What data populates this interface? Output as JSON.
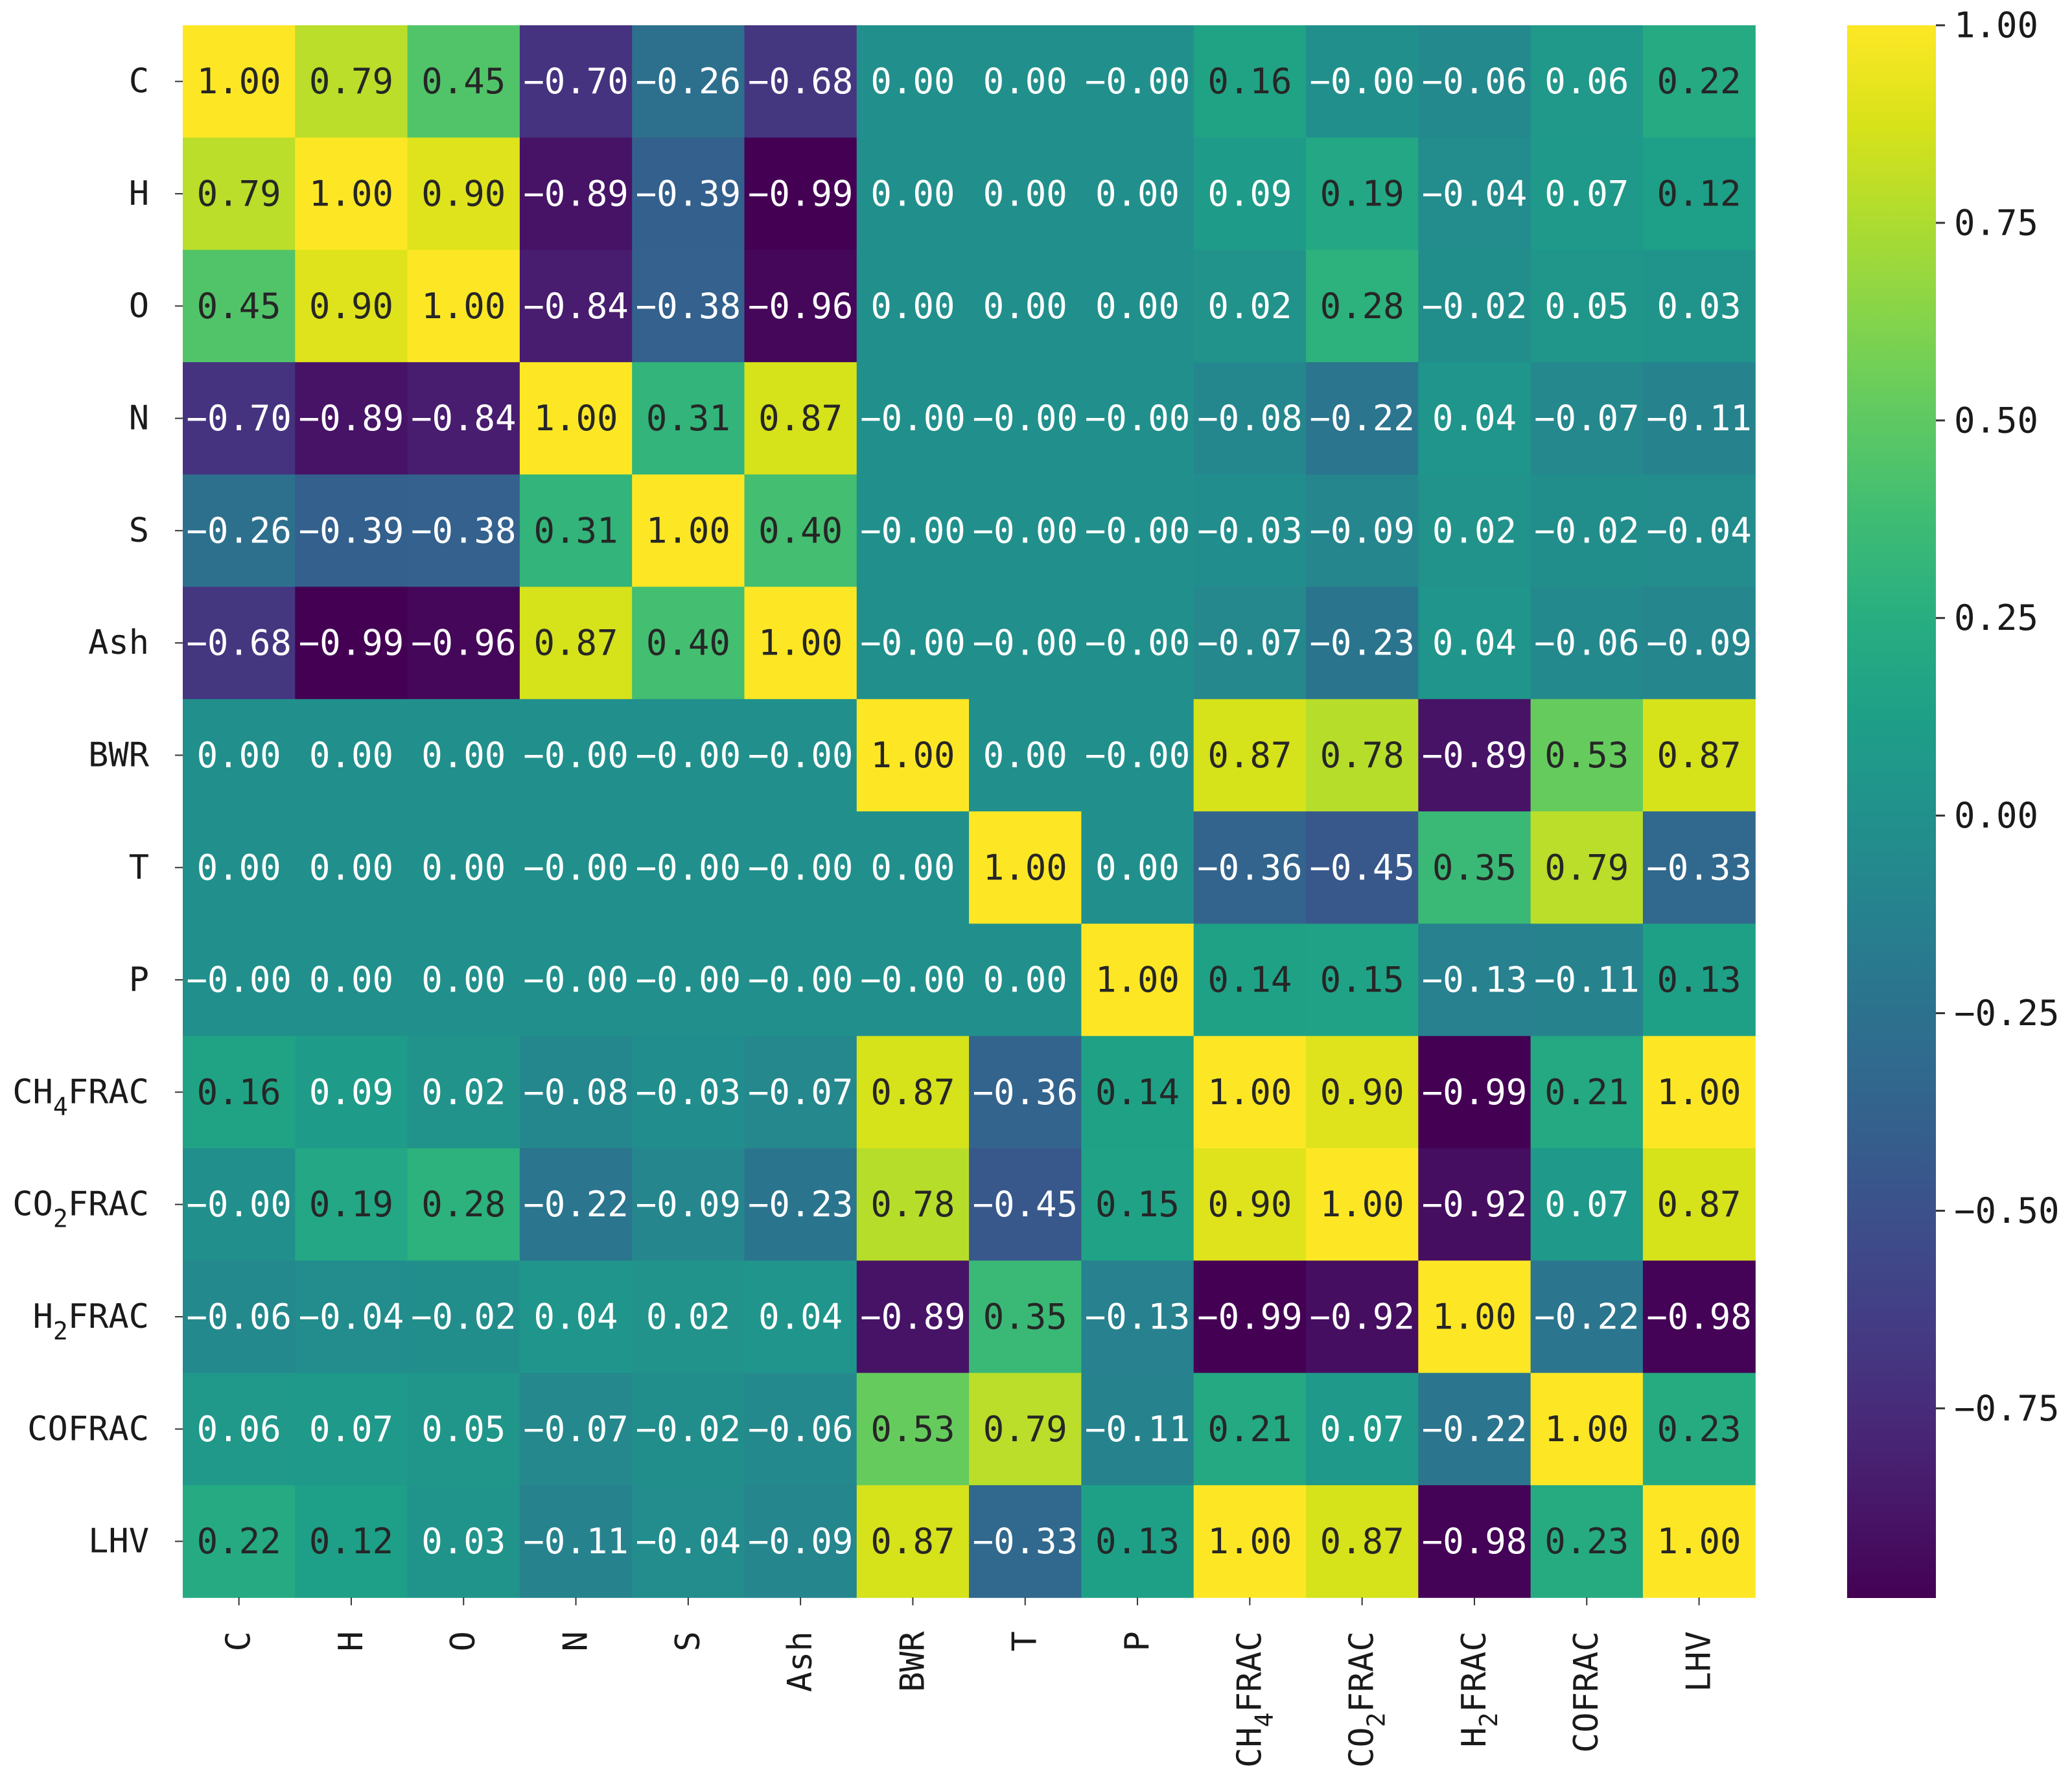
{
  "chart_data": {
    "type": "heatmap",
    "title": "",
    "row_labels": [
      {
        "main": "C",
        "sub": "",
        "suffix": ""
      },
      {
        "main": "H",
        "sub": "",
        "suffix": ""
      },
      {
        "main": "O",
        "sub": "",
        "suffix": ""
      },
      {
        "main": "N",
        "sub": "",
        "suffix": ""
      },
      {
        "main": "S",
        "sub": "",
        "suffix": ""
      },
      {
        "main": "Ash",
        "sub": "",
        "suffix": ""
      },
      {
        "main": "BWR",
        "sub": "",
        "suffix": ""
      },
      {
        "main": "T",
        "sub": "",
        "suffix": ""
      },
      {
        "main": "P",
        "sub": "",
        "suffix": ""
      },
      {
        "main": "CH",
        "sub": "4",
        "suffix": "FRAC"
      },
      {
        "main": "CO",
        "sub": "2",
        "suffix": "FRAC"
      },
      {
        "main": "H",
        "sub": "2",
        "suffix": "FRAC"
      },
      {
        "main": "COFRAC",
        "sub": "",
        "suffix": ""
      },
      {
        "main": "LHV",
        "sub": "",
        "suffix": ""
      }
    ],
    "values": [
      [
        "1.00",
        "0.79",
        "0.45",
        "-0.70",
        "-0.26",
        "-0.68",
        "0.00",
        "0.00",
        "-0.00",
        "0.16",
        "-0.00",
        "-0.06",
        "0.06",
        "0.22"
      ],
      [
        "0.79",
        "1.00",
        "0.90",
        "-0.89",
        "-0.39",
        "-0.99",
        "0.00",
        "0.00",
        "0.00",
        "0.09",
        "0.19",
        "-0.04",
        "0.07",
        "0.12"
      ],
      [
        "0.45",
        "0.90",
        "1.00",
        "-0.84",
        "-0.38",
        "-0.96",
        "0.00",
        "0.00",
        "0.00",
        "0.02",
        "0.28",
        "-0.02",
        "0.05",
        "0.03"
      ],
      [
        "-0.70",
        "-0.89",
        "-0.84",
        "1.00",
        "0.31",
        "0.87",
        "-0.00",
        "-0.00",
        "-0.00",
        "-0.08",
        "-0.22",
        "0.04",
        "-0.07",
        "-0.11"
      ],
      [
        "-0.26",
        "-0.39",
        "-0.38",
        "0.31",
        "1.00",
        "0.40",
        "-0.00",
        "-0.00",
        "-0.00",
        "-0.03",
        "-0.09",
        "0.02",
        "-0.02",
        "-0.04"
      ],
      [
        "-0.68",
        "-0.99",
        "-0.96",
        "0.87",
        "0.40",
        "1.00",
        "-0.00",
        "-0.00",
        "-0.00",
        "-0.07",
        "-0.23",
        "0.04",
        "-0.06",
        "-0.09"
      ],
      [
        "0.00",
        "0.00",
        "0.00",
        "-0.00",
        "-0.00",
        "-0.00",
        "1.00",
        "0.00",
        "-0.00",
        "0.87",
        "0.78",
        "-0.89",
        "0.53",
        "0.87"
      ],
      [
        "0.00",
        "0.00",
        "0.00",
        "-0.00",
        "-0.00",
        "-0.00",
        "0.00",
        "1.00",
        "0.00",
        "-0.36",
        "-0.45",
        "0.35",
        "0.79",
        "-0.33"
      ],
      [
        "-0.00",
        "0.00",
        "0.00",
        "-0.00",
        "-0.00",
        "-0.00",
        "-0.00",
        "0.00",
        "1.00",
        "0.14",
        "0.15",
        "-0.13",
        "-0.11",
        "0.13"
      ],
      [
        "0.16",
        "0.09",
        "0.02",
        "-0.08",
        "-0.03",
        "-0.07",
        "0.87",
        "-0.36",
        "0.14",
        "1.00",
        "0.90",
        "-0.99",
        "0.21",
        "1.00"
      ],
      [
        "-0.00",
        "0.19",
        "0.28",
        "-0.22",
        "-0.09",
        "-0.23",
        "0.78",
        "-0.45",
        "0.15",
        "0.90",
        "1.00",
        "-0.92",
        "0.07",
        "0.87"
      ],
      [
        "-0.06",
        "-0.04",
        "-0.02",
        "0.04",
        "0.02",
        "0.04",
        "-0.89",
        "0.35",
        "-0.13",
        "-0.99",
        "-0.92",
        "1.00",
        "-0.22",
        "-0.98"
      ],
      [
        "0.06",
        "0.07",
        "0.05",
        "-0.07",
        "-0.02",
        "-0.06",
        "0.53",
        "0.79",
        "-0.11",
        "0.21",
        "0.07",
        "-0.22",
        "1.00",
        "0.23"
      ],
      [
        "0.22",
        "0.12",
        "0.03",
        "-0.11",
        "-0.04",
        "-0.09",
        "0.87",
        "-0.33",
        "0.13",
        "1.00",
        "0.87",
        "-0.98",
        "0.23",
        "1.00"
      ]
    ],
    "colorbar": {
      "colormap": "viridis",
      "range": [
        -0.99,
        1.0
      ],
      "ticks": [
        {
          "value": 1.0,
          "label": "1.00"
        },
        {
          "value": 0.75,
          "label": "0.75"
        },
        {
          "value": 0.5,
          "label": "0.50"
        },
        {
          "value": 0.25,
          "label": "0.25"
        },
        {
          "value": 0.0,
          "label": "0.00"
        },
        {
          "value": -0.25,
          "label": "−0.25"
        },
        {
          "value": -0.5,
          "label": "−0.50"
        },
        {
          "value": -0.75,
          "label": "−0.75"
        }
      ]
    }
  }
}
